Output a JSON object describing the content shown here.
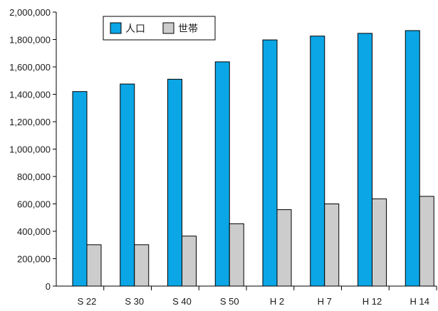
{
  "chart_data": {
    "type": "bar",
    "categories": [
      "S 22",
      "S 30",
      "S 40",
      "S 50",
      "H 2",
      "H 7",
      "H 12",
      "H 14"
    ],
    "series": [
      {
        "name": "人口",
        "color": "#0aa6e6",
        "values": [
          1420000,
          1475000,
          1510000,
          1637000,
          1797000,
          1825000,
          1845000,
          1865000
        ]
      },
      {
        "name": "世帯",
        "color": "#cccccc",
        "values": [
          302000,
          302000,
          365000,
          455000,
          558000,
          600000,
          637000,
          655000
        ]
      }
    ],
    "ylim": [
      0,
      2000000
    ],
    "yticks": [
      0,
      200000,
      400000,
      600000,
      800000,
      1000000,
      1200000,
      1400000,
      1600000,
      1800000,
      2000000
    ],
    "ytick_labels": [
      "0",
      "200,000",
      "400,000",
      "600,000",
      "800,000",
      "1,000,000",
      "1,200,000",
      "1,400,000",
      "1,600,000",
      "1,800,000",
      "2,000,000"
    ],
    "title": "",
    "xlabel": "",
    "ylabel": "",
    "grid": false,
    "legend": {
      "placement": "top-left"
    }
  }
}
